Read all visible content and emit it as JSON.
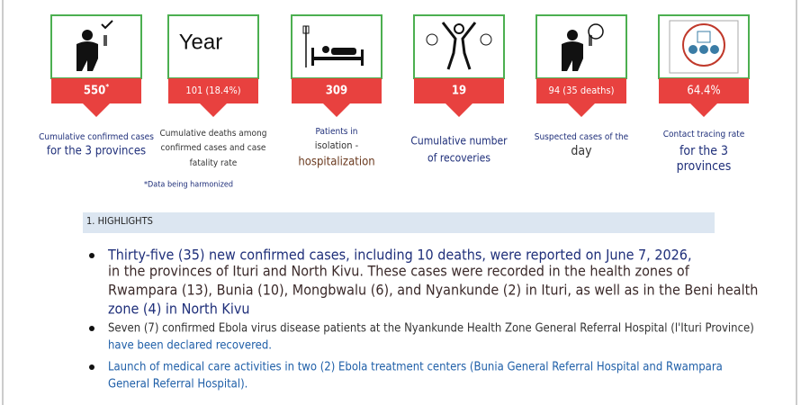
{
  "cards": [
    {
      "value": "550",
      "value_sup": "*",
      "caption": [
        "Cumulative confirmed cases",
        "for the 3 provinces"
      ]
    },
    {
      "icon_text": "Year",
      "value": "101 (18.4%)",
      "caption": [
        "Cumulative deaths among",
        "confirmed cases and case",
        "fatality rate"
      ]
    },
    {
      "value": "309",
      "caption": [
        "Patients in",
        "isolation -",
        "hospitalization"
      ]
    },
    {
      "value": "19",
      "caption": [
        "Cumulative number",
        "of recoveries"
      ]
    },
    {
      "value": "94 (35 deaths)",
      "caption": [
        "Suspected cases of the",
        "day"
      ]
    },
    {
      "value": "64.4%",
      "caption": [
        "Contact tracing rate",
        "for the 3",
        "provinces"
      ]
    }
  ],
  "note": "*Data being harmonized",
  "section_title": "1. HIGHLIGHTS",
  "bullets": [
    [
      "Thirty-five (35) new confirmed cases, including 10 deaths, were reported on June 7, 2026,",
      "in the provinces of Ituri and North Kivu. These cases were recorded in the health zones of",
      "Rwampara (13), Bunia (10), Mongbwalu (6), and Nyankunde (2) in Ituri, as well as in the Beni health",
      "zone (4) in North Kivu"
    ],
    [
      "Seven (7) confirmed Ebola virus disease patients at the Nyankunde Health Zone General Referral Hospital (l'Ituri Province)",
      "have been declared recovered."
    ],
    [
      "Launch of medical care activities in two (2) Ebola treatment centers (Bunia General Referral Hospital and Rwampara",
      "General Referral Hospital)."
    ]
  ]
}
